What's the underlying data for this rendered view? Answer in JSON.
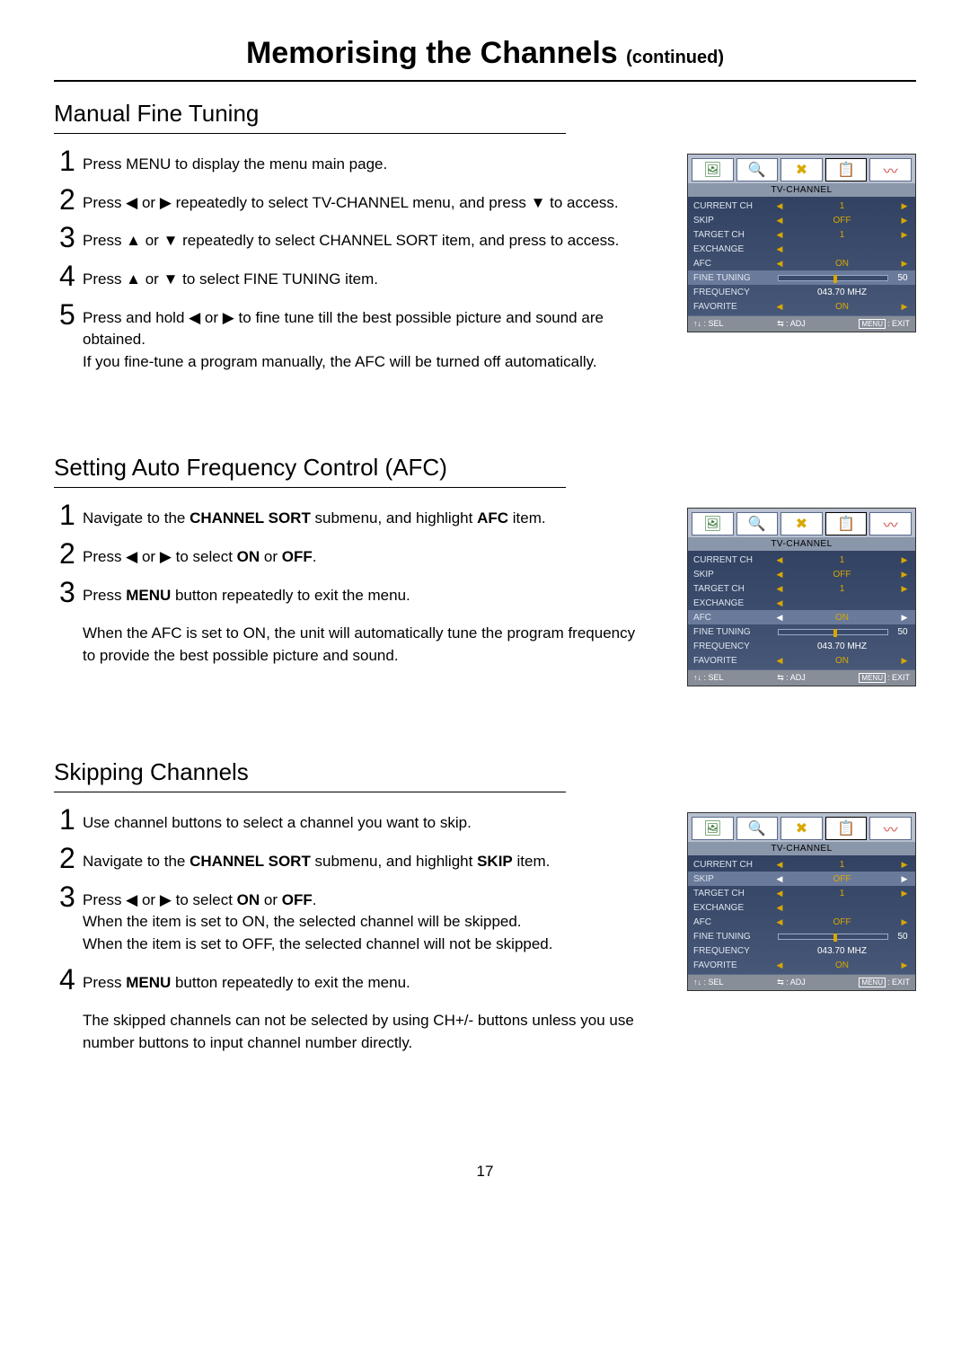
{
  "page_title_main": "Memorising the Channels ",
  "page_title_cont": "(continued)",
  "page_number": "17",
  "arrows": {
    "left": "◀",
    "right": "▶",
    "up": "▲",
    "down": "▼",
    "updown": "↑↓",
    "leftright": "⇆"
  },
  "sections": [
    {
      "title": "Manual Fine Tuning",
      "steps": [
        {
          "n": "1",
          "html": "Press MENU to display the menu main page."
        },
        {
          "n": "2",
          "html": "Press ◀ or ▶ repeatedly to select TV-CHANNEL menu, and press ▼ to access."
        },
        {
          "n": "3",
          "html": "Press ▲ or ▼ repeatedly to select CHANNEL SORT item, and press     to access."
        },
        {
          "n": "4",
          "html": "Press ▲ or ▼ to select FINE TUNING item."
        },
        {
          "n": "5",
          "html": "Press and hold ◀ or ▶ to fine tune till the best possible picture and sound are obtained.<br>If you fine-tune a program manually, the AFC will be turned off automatically."
        }
      ],
      "note": "",
      "osd_highlight": "FINE TUNING",
      "osd_hl_type": "slider",
      "osd_afc": "ON",
      "osd_skip": "OFF"
    },
    {
      "title": "Setting Auto Frequency Control (AFC)",
      "steps": [
        {
          "n": "1",
          "html": "Navigate to the <b>CHANNEL SORT</b> submenu, and highlight <b>AFC</b> item."
        },
        {
          "n": "2",
          "html": "Press ◀ or ▶ to select <b>ON</b> or <b>OFF</b>."
        },
        {
          "n": "3",
          "html": "Press <b>MENU</b> button repeatedly to exit the menu."
        }
      ],
      "note": "When the AFC is set to ON, the unit will automatically tune the program frequency to provide the best possible picture and sound.",
      "osd_highlight": "AFC",
      "osd_hl_type": "value",
      "osd_afc": "ON",
      "osd_skip": "OFF"
    },
    {
      "title": "Skipping Channels",
      "steps": [
        {
          "n": "1",
          "html": "Use channel buttons to select a channel you want to skip."
        },
        {
          "n": "2",
          "html": "Navigate to the <b>CHANNEL SORT</b> submenu, and highlight <b>SKIP</b> item."
        },
        {
          "n": "3",
          "html": "Press ◀ or ▶ to select <b>ON</b> or <b>OFF</b>.<br>When the item is set to ON, the selected channel will be skipped.<br>When the item is set to OFF, the selected channel will not be skipped."
        },
        {
          "n": "4",
          "html": "Press <b>MENU</b> button repeatedly to exit the menu."
        }
      ],
      "note": "The skipped channels can not be selected by using CH+/- buttons unless you use number buttons to input channel number directly.",
      "osd_highlight": "SKIP",
      "osd_hl_type": "value",
      "osd_afc": "OFF",
      "osd_skip": "OFF"
    }
  ],
  "osd": {
    "header": "TV-CHANNEL",
    "tabs": [
      "🖼",
      "🔍",
      "✖",
      "📋",
      "〰"
    ],
    "tab_colors": [
      "#3a7a3a",
      "#5a5aaa",
      "#d8a800",
      "#888",
      "#cc4444"
    ],
    "active_tab": 3,
    "rows": [
      {
        "label": "CURRENT CH",
        "val": "1",
        "type": "value"
      },
      {
        "label": "SKIP",
        "val_key": "skip",
        "type": "value"
      },
      {
        "label": "TARGET CH",
        "val": "1",
        "type": "value"
      },
      {
        "label": "EXCHANGE",
        "val": "",
        "type": "blank"
      },
      {
        "label": "AFC",
        "val_key": "afc",
        "type": "value"
      },
      {
        "label": "FINE TUNING",
        "val": "50",
        "type": "slider"
      },
      {
        "label": "FREQUENCY",
        "val": "043.70 MHZ",
        "type": "text"
      },
      {
        "label": "FAVORITE",
        "val": "ON",
        "type": "value"
      }
    ],
    "footer": {
      "sel": ": SEL",
      "adj": ": ADJ",
      "exit": ": EXIT",
      "menu": "MENU"
    }
  }
}
